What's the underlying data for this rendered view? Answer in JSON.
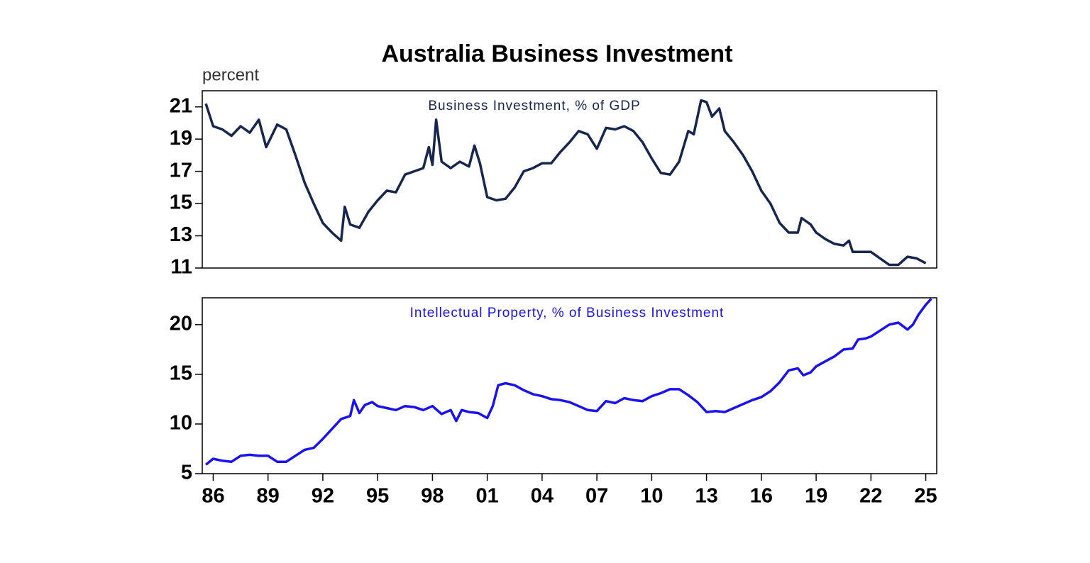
{
  "title": "Australia Business Investment",
  "unit_label": "percent",
  "chart_data": [
    {
      "type": "line",
      "title": "Business Investment, % of GDP",
      "color": "#16264f",
      "xlim": [
        1985.4,
        2025.6
      ],
      "ylim": [
        11,
        22
      ],
      "yticks": [
        11,
        13,
        15,
        17,
        19,
        21
      ],
      "x": [
        1985.6,
        1986.0,
        1986.5,
        1987.0,
        1987.5,
        1988.0,
        1988.5,
        1988.9,
        1989.5,
        1990.0,
        1990.5,
        1991.0,
        1991.5,
        1992.0,
        1992.5,
        1993.0,
        1993.2,
        1993.5,
        1994.0,
        1994.5,
        1995.0,
        1995.5,
        1996.0,
        1996.5,
        1997.0,
        1997.5,
        1997.8,
        1998.0,
        1998.2,
        1998.5,
        1999.0,
        1999.5,
        2000.0,
        2000.3,
        2000.6,
        2001.0,
        2001.5,
        2002.0,
        2002.5,
        2003.0,
        2003.5,
        2004.0,
        2004.5,
        2005.0,
        2005.5,
        2006.0,
        2006.5,
        2007.0,
        2007.5,
        2008.0,
        2008.5,
        2009.0,
        2009.5,
        2010.0,
        2010.5,
        2011.0,
        2011.5,
        2012.0,
        2012.3,
        2012.7,
        2013.0,
        2013.3,
        2013.7,
        2014.0,
        2014.5,
        2015.0,
        2015.5,
        2016.0,
        2016.5,
        2017.0,
        2017.5,
        2018.0,
        2018.2,
        2018.7,
        2019.0,
        2019.5,
        2020.0,
        2020.5,
        2020.8,
        2021.0,
        2021.5,
        2022.0,
        2022.5,
        2023.0,
        2023.5,
        2024.0,
        2024.5,
        2025.0
      ],
      "values": [
        21.2,
        19.8,
        19.6,
        19.2,
        19.8,
        19.4,
        20.2,
        18.5,
        19.9,
        19.6,
        18.0,
        16.3,
        15.0,
        13.8,
        13.2,
        12.7,
        14.8,
        13.7,
        13.5,
        14.5,
        15.2,
        15.8,
        15.7,
        16.8,
        17.0,
        17.2,
        18.5,
        17.4,
        20.2,
        17.6,
        17.2,
        17.6,
        17.3,
        18.6,
        17.5,
        15.4,
        15.2,
        15.3,
        16.0,
        17.0,
        17.2,
        17.5,
        17.5,
        18.2,
        18.8,
        19.5,
        19.3,
        18.4,
        19.7,
        19.6,
        19.8,
        19.5,
        18.8,
        17.8,
        16.9,
        16.8,
        17.6,
        19.5,
        19.3,
        21.4,
        21.3,
        20.4,
        20.9,
        19.5,
        18.8,
        18.0,
        17.0,
        15.8,
        15.0,
        13.8,
        13.2,
        13.2,
        14.1,
        13.7,
        13.2,
        12.8,
        12.5,
        12.4,
        12.7,
        12.0,
        12.0,
        12.0,
        11.6,
        11.2,
        11.2,
        11.7,
        11.6,
        11.3
      ]
    },
    {
      "type": "line",
      "title": "Intellectual Property, % of Business Investment",
      "color": "#1a12f0",
      "xlim": [
        1985.4,
        2025.6
      ],
      "ylim": [
        5,
        22.7
      ],
      "yticks": [
        5,
        10,
        15,
        20
      ],
      "xticks": [
        {
          "value": 1986,
          "label": "86"
        },
        {
          "value": 1989,
          "label": "89"
        },
        {
          "value": 1992,
          "label": "92"
        },
        {
          "value": 1995,
          "label": "95"
        },
        {
          "value": 1998,
          "label": "98"
        },
        {
          "value": 2001,
          "label": "01"
        },
        {
          "value": 2004,
          "label": "04"
        },
        {
          "value": 2007,
          "label": "07"
        },
        {
          "value": 2010,
          "label": "10"
        },
        {
          "value": 2013,
          "label": "13"
        },
        {
          "value": 2016,
          "label": "16"
        },
        {
          "value": 2019,
          "label": "19"
        },
        {
          "value": 2022,
          "label": "22"
        },
        {
          "value": 2025,
          "label": "25"
        }
      ],
      "x": [
        1985.6,
        1986.0,
        1986.5,
        1987.0,
        1987.5,
        1988.0,
        1988.5,
        1989.0,
        1989.5,
        1990.0,
        1990.5,
        1991.0,
        1991.5,
        1992.0,
        1992.5,
        1993.0,
        1993.5,
        1993.7,
        1994.0,
        1994.3,
        1994.7,
        1995.0,
        1995.5,
        1996.0,
        1996.5,
        1997.0,
        1997.5,
        1998.0,
        1998.5,
        1999.0,
        1999.3,
        1999.6,
        2000.0,
        2000.5,
        2001.0,
        2001.3,
        2001.6,
        2002.0,
        2002.5,
        2003.0,
        2003.5,
        2004.0,
        2004.5,
        2005.0,
        2005.5,
        2006.0,
        2006.5,
        2007.0,
        2007.5,
        2008.0,
        2008.5,
        2009.0,
        2009.5,
        2010.0,
        2010.5,
        2011.0,
        2011.5,
        2012.0,
        2012.5,
        2013.0,
        2013.5,
        2014.0,
        2014.5,
        2015.0,
        2015.5,
        2016.0,
        2016.5,
        2017.0,
        2017.5,
        2018.0,
        2018.3,
        2018.7,
        2019.0,
        2019.5,
        2020.0,
        2020.5,
        2021.0,
        2021.3,
        2021.7,
        2022.0,
        2022.5,
        2023.0,
        2023.5,
        2024.0,
        2024.3,
        2024.6,
        2025.0,
        2025.3
      ],
      "values": [
        5.9,
        6.5,
        6.3,
        6.2,
        6.8,
        6.9,
        6.8,
        6.8,
        6.2,
        6.2,
        6.8,
        7.4,
        7.6,
        8.5,
        9.5,
        10.5,
        10.8,
        12.4,
        11.1,
        11.9,
        12.2,
        11.8,
        11.6,
        11.4,
        11.8,
        11.7,
        11.4,
        11.8,
        11.0,
        11.4,
        10.3,
        11.4,
        11.2,
        11.1,
        10.6,
        11.8,
        13.9,
        14.1,
        13.9,
        13.4,
        13.0,
        12.8,
        12.5,
        12.4,
        12.2,
        11.8,
        11.4,
        11.3,
        12.3,
        12.1,
        12.6,
        12.4,
        12.3,
        12.8,
        13.1,
        13.5,
        13.5,
        12.9,
        12.2,
        11.2,
        11.3,
        11.2,
        11.6,
        12.0,
        12.4,
        12.7,
        13.3,
        14.2,
        15.4,
        15.6,
        14.9,
        15.2,
        15.8,
        16.3,
        16.8,
        17.5,
        17.6,
        18.5,
        18.6,
        18.8,
        19.4,
        20.0,
        20.2,
        19.5,
        20.0,
        21.0,
        22.0,
        22.6
      ]
    }
  ]
}
